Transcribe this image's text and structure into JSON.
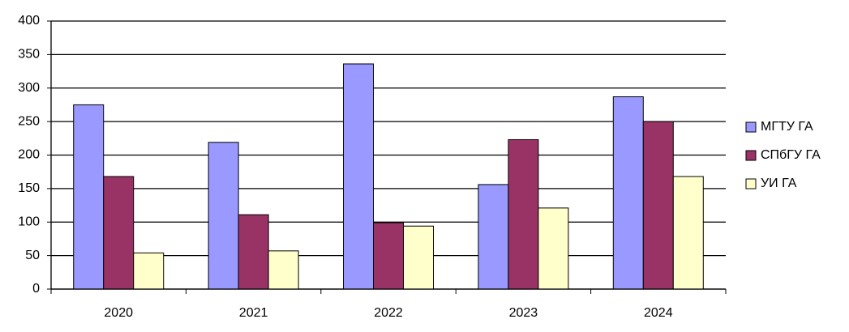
{
  "chart_data": {
    "type": "bar",
    "categories": [
      "2020",
      "2021",
      "2022",
      "2023",
      "2024"
    ],
    "series": [
      {
        "name": "МГТУ ГА",
        "color": "#9999ff",
        "values": [
          275,
          219,
          336,
          156,
          287
        ]
      },
      {
        "name": "СПбГУ ГА",
        "color": "#993366",
        "values": [
          168,
          111,
          99,
          223,
          250
        ]
      },
      {
        "name": "УИ ГА",
        "color": "#ffffcc",
        "values": [
          54,
          57,
          94,
          121,
          168
        ]
      }
    ],
    "ylim": [
      0,
      400
    ],
    "yticks": [
      0,
      50,
      100,
      150,
      200,
      250,
      300,
      350,
      400
    ],
    "grid": true,
    "legend": "right"
  }
}
